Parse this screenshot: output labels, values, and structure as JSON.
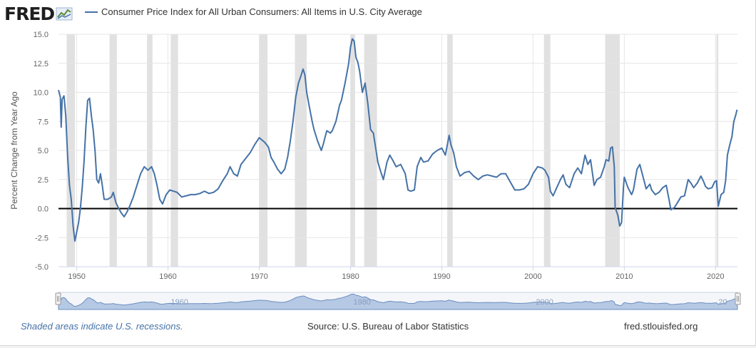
{
  "brand": {
    "name": "FRED"
  },
  "legend": {
    "series_name": "Consumer Price Index for All Urban Consumers: All Items in U.S. City Average",
    "color": "#4572a7"
  },
  "footer": {
    "recession_note": "Shaded areas indicate U.S. recessions.",
    "source": "Source: U.S. Bureau of Labor Statistics",
    "site": "fred.stlouisfed.org"
  },
  "navigator": {
    "ticks": [
      "1960",
      "1980",
      "2000",
      "20"
    ]
  },
  "chart_data": {
    "type": "line",
    "title": "",
    "xlabel": "",
    "ylabel": "Percent Change from Year Ago",
    "xlim": [
      1948.0,
      2022.4
    ],
    "ylim": [
      -5.0,
      15.0
    ],
    "x_ticks": [
      1950,
      1960,
      1970,
      1980,
      1990,
      2000,
      2010,
      2020
    ],
    "x_tick_labels": [
      "1950",
      "1960",
      "1970",
      "1980",
      "1990",
      "2000",
      "2010",
      "2020"
    ],
    "y_ticks": [
      -5.0,
      -2.5,
      0.0,
      2.5,
      5.0,
      7.5,
      10.0,
      12.5,
      15.0
    ],
    "y_tick_labels": [
      "-5.0",
      "-2.5",
      "0.0",
      "2.5",
      "5.0",
      "7.5",
      "10.0",
      "12.5",
      "15.0"
    ],
    "grid": true,
    "line_color": "#4572a7",
    "zero_line": true,
    "recession_color": "#e1e1e1",
    "recessions": [
      [
        1948.9,
        1949.8
      ],
      [
        1953.6,
        1954.4
      ],
      [
        1957.7,
        1958.3
      ],
      [
        1960.3,
        1961.1
      ],
      [
        1970.0,
        1970.9
      ],
      [
        1973.9,
        1975.2
      ],
      [
        1980.0,
        1980.5
      ],
      [
        1981.5,
        1982.9
      ],
      [
        1990.6,
        1991.2
      ],
      [
        2001.2,
        2001.9
      ],
      [
        2007.9,
        2009.5
      ],
      [
        2020.1,
        2020.3
      ]
    ],
    "series": [
      {
        "values": [
          [
            1948.0,
            10.2
          ],
          [
            1948.2,
            9.6
          ],
          [
            1948.3,
            7.0
          ],
          [
            1948.4,
            9.4
          ],
          [
            1948.6,
            9.7
          ],
          [
            1948.8,
            8.0
          ],
          [
            1949.0,
            4.5
          ],
          [
            1949.2,
            2.0
          ],
          [
            1949.4,
            0.8
          ],
          [
            1949.6,
            -1.5
          ],
          [
            1949.8,
            -2.8
          ],
          [
            1950.0,
            -2.0
          ],
          [
            1950.2,
            -1.2
          ],
          [
            1950.4,
            0.0
          ],
          [
            1950.6,
            1.8
          ],
          [
            1950.8,
            4.0
          ],
          [
            1951.0,
            7.0
          ],
          [
            1951.2,
            9.3
          ],
          [
            1951.4,
            9.5
          ],
          [
            1951.6,
            8.0
          ],
          [
            1951.8,
            6.8
          ],
          [
            1952.0,
            5.0
          ],
          [
            1952.2,
            2.5
          ],
          [
            1952.4,
            2.2
          ],
          [
            1952.6,
            3.0
          ],
          [
            1952.8,
            2.0
          ],
          [
            1953.0,
            0.8
          ],
          [
            1953.4,
            0.8
          ],
          [
            1953.8,
            1.0
          ],
          [
            1954.0,
            1.4
          ],
          [
            1954.3,
            0.5
          ],
          [
            1954.6,
            0.0
          ],
          [
            1954.9,
            -0.4
          ],
          [
            1955.2,
            -0.7
          ],
          [
            1955.5,
            -0.3
          ],
          [
            1955.8,
            0.2
          ],
          [
            1956.2,
            1.0
          ],
          [
            1956.6,
            2.0
          ],
          [
            1957.0,
            3.0
          ],
          [
            1957.4,
            3.6
          ],
          [
            1957.8,
            3.3
          ],
          [
            1958.2,
            3.6
          ],
          [
            1958.5,
            3.0
          ],
          [
            1958.8,
            2.0
          ],
          [
            1959.1,
            0.8
          ],
          [
            1959.4,
            0.4
          ],
          [
            1959.8,
            1.2
          ],
          [
            1960.2,
            1.6
          ],
          [
            1960.6,
            1.5
          ],
          [
            1961.0,
            1.4
          ],
          [
            1961.5,
            1.0
          ],
          [
            1962.0,
            1.1
          ],
          [
            1962.5,
            1.2
          ],
          [
            1963.0,
            1.2
          ],
          [
            1963.5,
            1.3
          ],
          [
            1964.0,
            1.5
          ],
          [
            1964.5,
            1.3
          ],
          [
            1965.0,
            1.4
          ],
          [
            1965.5,
            1.7
          ],
          [
            1966.0,
            2.4
          ],
          [
            1966.5,
            3.0
          ],
          [
            1966.8,
            3.6
          ],
          [
            1967.2,
            3.0
          ],
          [
            1967.6,
            2.8
          ],
          [
            1968.0,
            3.8
          ],
          [
            1968.5,
            4.3
          ],
          [
            1969.0,
            4.8
          ],
          [
            1969.5,
            5.5
          ],
          [
            1970.0,
            6.1
          ],
          [
            1970.3,
            5.9
          ],
          [
            1970.6,
            5.7
          ],
          [
            1971.0,
            5.3
          ],
          [
            1971.3,
            4.4
          ],
          [
            1971.6,
            4.0
          ],
          [
            1972.0,
            3.4
          ],
          [
            1972.4,
            3.0
          ],
          [
            1972.8,
            3.4
          ],
          [
            1973.1,
            4.4
          ],
          [
            1973.4,
            5.8
          ],
          [
            1973.7,
            7.5
          ],
          [
            1974.0,
            9.6
          ],
          [
            1974.3,
            10.8
          ],
          [
            1974.6,
            11.5
          ],
          [
            1974.8,
            12.0
          ],
          [
            1975.0,
            11.5
          ],
          [
            1975.2,
            10.0
          ],
          [
            1975.5,
            8.7
          ],
          [
            1975.8,
            7.5
          ],
          [
            1976.0,
            6.8
          ],
          [
            1976.4,
            5.8
          ],
          [
            1976.8,
            5.0
          ],
          [
            1977.0,
            5.5
          ],
          [
            1977.4,
            6.7
          ],
          [
            1977.8,
            6.5
          ],
          [
            1978.0,
            6.7
          ],
          [
            1978.4,
            7.5
          ],
          [
            1978.8,
            8.9
          ],
          [
            1979.0,
            9.3
          ],
          [
            1979.4,
            10.8
          ],
          [
            1979.8,
            12.5
          ],
          [
            1980.0,
            13.9
          ],
          [
            1980.2,
            14.6
          ],
          [
            1980.4,
            14.4
          ],
          [
            1980.6,
            13.0
          ],
          [
            1980.8,
            12.6
          ],
          [
            1981.0,
            11.8
          ],
          [
            1981.3,
            10.0
          ],
          [
            1981.6,
            10.8
          ],
          [
            1981.9,
            9.0
          ],
          [
            1982.2,
            6.8
          ],
          [
            1982.5,
            6.5
          ],
          [
            1982.8,
            5.0
          ],
          [
            1983.0,
            4.0
          ],
          [
            1983.3,
            3.2
          ],
          [
            1983.6,
            2.5
          ],
          [
            1984.0,
            4.0
          ],
          [
            1984.3,
            4.6
          ],
          [
            1984.6,
            4.2
          ],
          [
            1985.0,
            3.6
          ],
          [
            1985.5,
            3.8
          ],
          [
            1986.0,
            3.0
          ],
          [
            1986.3,
            1.6
          ],
          [
            1986.6,
            1.5
          ],
          [
            1987.0,
            1.6
          ],
          [
            1987.3,
            3.6
          ],
          [
            1987.7,
            4.4
          ],
          [
            1988.0,
            4.0
          ],
          [
            1988.5,
            4.1
          ],
          [
            1989.0,
            4.7
          ],
          [
            1989.5,
            5.0
          ],
          [
            1990.0,
            5.2
          ],
          [
            1990.4,
            4.6
          ],
          [
            1990.8,
            6.3
          ],
          [
            1991.0,
            5.5
          ],
          [
            1991.3,
            4.8
          ],
          [
            1991.6,
            3.6
          ],
          [
            1992.0,
            2.8
          ],
          [
            1992.5,
            3.1
          ],
          [
            1993.0,
            3.2
          ],
          [
            1993.5,
            2.8
          ],
          [
            1994.0,
            2.5
          ],
          [
            1994.5,
            2.8
          ],
          [
            1995.0,
            2.9
          ],
          [
            1995.5,
            2.8
          ],
          [
            1996.0,
            2.7
          ],
          [
            1996.5,
            3.0
          ],
          [
            1997.0,
            3.0
          ],
          [
            1997.5,
            2.3
          ],
          [
            1998.0,
            1.6
          ],
          [
            1998.5,
            1.6
          ],
          [
            1999.0,
            1.7
          ],
          [
            1999.5,
            2.1
          ],
          [
            2000.0,
            3.0
          ],
          [
            2000.5,
            3.6
          ],
          [
            2001.0,
            3.5
          ],
          [
            2001.3,
            3.3
          ],
          [
            2001.7,
            2.7
          ],
          [
            2001.9,
            1.5
          ],
          [
            2002.2,
            1.1
          ],
          [
            2002.6,
            1.8
          ],
          [
            2003.0,
            2.5
          ],
          [
            2003.3,
            2.9
          ],
          [
            2003.6,
            2.1
          ],
          [
            2004.0,
            1.8
          ],
          [
            2004.5,
            3.0
          ],
          [
            2004.9,
            3.5
          ],
          [
            2005.3,
            3.0
          ],
          [
            2005.7,
            4.6
          ],
          [
            2006.0,
            3.8
          ],
          [
            2006.3,
            4.2
          ],
          [
            2006.7,
            2.0
          ],
          [
            2007.0,
            2.5
          ],
          [
            2007.4,
            2.7
          ],
          [
            2007.8,
            3.6
          ],
          [
            2008.0,
            4.2
          ],
          [
            2008.3,
            4.1
          ],
          [
            2008.5,
            5.2
          ],
          [
            2008.7,
            5.3
          ],
          [
            2008.9,
            3.6
          ],
          [
            2009.0,
            0.1
          ],
          [
            2009.3,
            -0.6
          ],
          [
            2009.5,
            -1.5
          ],
          [
            2009.7,
            -1.2
          ],
          [
            2009.9,
            1.8
          ],
          [
            2010.0,
            2.7
          ],
          [
            2010.4,
            1.8
          ],
          [
            2010.8,
            1.2
          ],
          [
            2011.0,
            1.6
          ],
          [
            2011.4,
            3.4
          ],
          [
            2011.7,
            3.8
          ],
          [
            2012.0,
            2.9
          ],
          [
            2012.4,
            1.7
          ],
          [
            2012.8,
            2.1
          ],
          [
            2013.0,
            1.6
          ],
          [
            2013.4,
            1.2
          ],
          [
            2013.8,
            1.4
          ],
          [
            2014.2,
            1.8
          ],
          [
            2014.6,
            2.0
          ],
          [
            2014.9,
            0.8
          ],
          [
            2015.1,
            -0.1
          ],
          [
            2015.5,
            0.1
          ],
          [
            2015.9,
            0.6
          ],
          [
            2016.2,
            1.0
          ],
          [
            2016.6,
            1.1
          ],
          [
            2017.0,
            2.5
          ],
          [
            2017.3,
            2.2
          ],
          [
            2017.6,
            1.8
          ],
          [
            2018.0,
            2.2
          ],
          [
            2018.4,
            2.8
          ],
          [
            2018.7,
            2.3
          ],
          [
            2018.9,
            1.9
          ],
          [
            2019.2,
            1.7
          ],
          [
            2019.6,
            1.8
          ],
          [
            2019.9,
            2.3
          ],
          [
            2020.1,
            2.4
          ],
          [
            2020.3,
            0.2
          ],
          [
            2020.6,
            1.2
          ],
          [
            2020.9,
            1.4
          ],
          [
            2021.1,
            2.4
          ],
          [
            2021.3,
            4.6
          ],
          [
            2021.5,
            5.3
          ],
          [
            2021.8,
            6.2
          ],
          [
            2022.0,
            7.5
          ],
          [
            2022.2,
            8.0
          ],
          [
            2022.35,
            8.5
          ]
        ]
      }
    ]
  }
}
